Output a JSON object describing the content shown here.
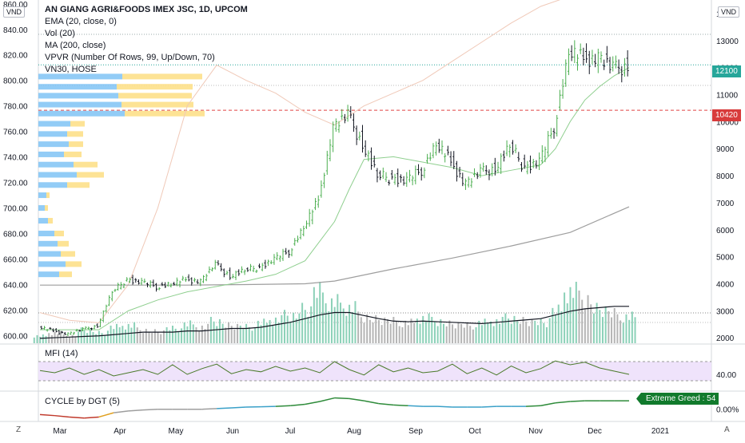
{
  "currency_left": "VND",
  "currency_right": "VND",
  "corner_bottom_left": "Z",
  "corner_bottom_right": "A",
  "legend": {
    "title": "AN GIANG AGRI&FOODS IMEX JSC, 1D, UPCOM",
    "lines": [
      "EMA (20, close, 0)",
      "Vol (20)",
      "MA (200, close)",
      "VPVR (Number Of Rows, 99, Up/Down, 70)",
      "VN30, HOSE"
    ]
  },
  "mfi_label": "MFI (14)",
  "cycle_label": "CYCLE by DGT (5)",
  "price_tags": {
    "last": "12100",
    "line": "10420",
    "cycle": "Extreme Greed : 54"
  },
  "colors": {
    "up": "#4caf50",
    "down": "#131722",
    "vol_up": "#8cd1b8",
    "vol_down": "#b5b5b5",
    "vpvr_up": "#7fc3f5",
    "vpvr_down": "#fde08a",
    "mfi_bg": "#efe3fb",
    "last": "#26a69a",
    "red": "#e04343",
    "cycle_badge": "#117a2c"
  },
  "chart_data": [
    {
      "type": "candlestick",
      "title": "AN GIANG AGRI&FOODS IMEX JSC, 1D, UPCOM",
      "x_tick_labels": [
        "Mar",
        "Apr",
        "May",
        "Jun",
        "Jul",
        "Aug",
        "Sep",
        "Oct",
        "Nov",
        "Dec",
        "2021"
      ],
      "left_axis_ticks": [
        "600.00",
        "620.00",
        "640.00",
        "660.00",
        "680.00",
        "700.00",
        "720.00",
        "740.00",
        "760.00",
        "780.00",
        "800.00",
        "820.00",
        "840.00",
        "860.00"
      ],
      "right_axis_ticks": [
        "2000",
        "3000",
        "4000",
        "5000",
        "6000",
        "7000",
        "8000",
        "9000",
        "10000",
        "11000",
        "12000",
        "13000",
        "14000"
      ],
      "ylim": [
        1800,
        14500
      ],
      "overlay_ylim": [
        594,
        863
      ],
      "close_series": {
        "name": "AN GIANG AGRI&FOODS IMEX JSC",
        "x_weeks": [
          0,
          1,
          2,
          3,
          4,
          5,
          6,
          7,
          8,
          9,
          10,
          11,
          12,
          13,
          14,
          15,
          16,
          17,
          18,
          19,
          20,
          21,
          22,
          23,
          24,
          25,
          26,
          27,
          28,
          29,
          30,
          31,
          32,
          33,
          34,
          35,
          36,
          37,
          38,
          39,
          40
        ],
        "values": [
          2400,
          2250,
          2150,
          2300,
          2450,
          3700,
          4150,
          4050,
          3900,
          4000,
          4150,
          4100,
          4700,
          4300,
          4500,
          4600,
          4900,
          5200,
          6100,
          7100,
          9800,
          10200,
          9200,
          8000,
          7900,
          7800,
          8200,
          9200,
          8500,
          7700,
          8100,
          8300,
          9100,
          8300,
          8500,
          9800,
          12600,
          12300,
          12400,
          11900,
          12100
        ]
      },
      "ema20": {
        "x_weeks": [
          0,
          4,
          6,
          8,
          10,
          12,
          14,
          16,
          18,
          20,
          21,
          22,
          24,
          26,
          28,
          30,
          32,
          34,
          35,
          36,
          37,
          38,
          39,
          40
        ],
        "values": [
          2300,
          2300,
          3000,
          3400,
          3700,
          3900,
          4100,
          4350,
          4850,
          6300,
          7500,
          8600,
          8700,
          8500,
          8300,
          8000,
          8200,
          8400,
          9000,
          10000,
          10800,
          11300,
          11700,
          12000
        ]
      },
      "ma200": {
        "x_weeks": [
          0,
          10,
          14,
          18,
          20,
          24,
          28,
          32,
          36,
          40
        ],
        "values": [
          3950,
          3950,
          3970,
          4000,
          4100,
          4550,
          4950,
          5400,
          5900,
          6850
        ]
      },
      "vn30": {
        "x_weeks": [
          0,
          2,
          4,
          6,
          8,
          10,
          12,
          14,
          16,
          18,
          20,
          22,
          24,
          26,
          28,
          30,
          32,
          34,
          36,
          40
        ],
        "values": [
          618,
          612,
          610,
          640,
          700,
          780,
          812,
          800,
          790,
          775,
          765,
          780,
          790,
          800,
          815,
          830,
          845,
          858,
          866,
          870
        ]
      },
      "volume": {
        "scale_pct": [
          0,
          100
        ],
        "weekly_pct": [
          10,
          14,
          10,
          18,
          14,
          22,
          24,
          18,
          16,
          20,
          26,
          22,
          30,
          24,
          22,
          28,
          32,
          38,
          46,
          70,
          56,
          48,
          36,
          32,
          30,
          28,
          34,
          30,
          26,
          24,
          28,
          30,
          34,
          30,
          28,
          44,
          70,
          60,
          46,
          40,
          36
        ],
        "vol_ma20_pct": [
          8,
          9,
          10,
          11,
          12,
          14,
          16,
          18,
          18,
          18,
          20,
          20,
          22,
          24,
          24,
          26,
          30,
          34,
          40,
          46,
          50,
          50,
          45,
          40,
          36,
          35,
          36,
          35,
          34,
          33,
          32,
          34,
          36,
          38,
          40,
          46,
          52,
          56,
          58,
          60,
          60
        ]
      },
      "vpvr_rows": [
        {
          "price": 803,
          "up": 105,
          "down": 100
        },
        {
          "price": 795,
          "up": 98,
          "down": 95
        },
        {
          "price": 788,
          "up": 100,
          "down": 92
        },
        {
          "price": 781,
          "up": 104,
          "down": 90
        },
        {
          "price": 774,
          "up": 108,
          "down": 100
        },
        {
          "price": 766,
          "up": 40,
          "down": 18
        },
        {
          "price": 758,
          "up": 36,
          "down": 20
        },
        {
          "price": 750,
          "up": 38,
          "down": 18
        },
        {
          "price": 742,
          "up": 32,
          "down": 22
        },
        {
          "price": 734,
          "up": 44,
          "down": 30
        },
        {
          "price": 726,
          "up": 48,
          "down": 34
        },
        {
          "price": 718,
          "up": 36,
          "down": 28
        },
        {
          "price": 710,
          "up": 10,
          "down": 4
        },
        {
          "price": 700,
          "up": 8,
          "down": 4
        },
        {
          "price": 690,
          "up": 12,
          "down": 6
        },
        {
          "price": 680,
          "up": 20,
          "down": 12
        },
        {
          "price": 672,
          "up": 24,
          "down": 14
        },
        {
          "price": 664,
          "up": 28,
          "down": 18
        },
        {
          "price": 656,
          "up": 34,
          "down": 20
        },
        {
          "price": 648,
          "up": 26,
          "down": 16
        }
      ]
    },
    {
      "type": "line",
      "title": "MFI (14)",
      "axis_ticks": [
        "40.00"
      ],
      "ylim": [
        0,
        100
      ],
      "bands": [
        20,
        80
      ],
      "values": [
        52,
        45,
        60,
        40,
        55,
        35,
        45,
        55,
        40,
        70,
        40,
        58,
        72,
        42,
        55,
        48,
        65,
        50,
        60,
        45,
        80,
        55,
        38,
        70,
        48,
        60,
        45,
        50,
        72,
        42,
        60,
        38,
        66,
        45,
        58,
        82,
        70,
        78,
        60,
        50,
        40
      ]
    },
    {
      "type": "line",
      "title": "CYCLE by DGT (5)",
      "axis_ticks": [
        "0.00%"
      ],
      "values": [
        -15,
        -18,
        -22,
        -25,
        -22,
        -10,
        -5,
        -2,
        0,
        0,
        0,
        0,
        2,
        4,
        6,
        7,
        8,
        10,
        14,
        22,
        32,
        30,
        24,
        16,
        12,
        10,
        8,
        8,
        6,
        6,
        6,
        8,
        8,
        8,
        10,
        18,
        22,
        24,
        24,
        24,
        24
      ],
      "ylim": [
        -30,
        40
      ]
    }
  ]
}
